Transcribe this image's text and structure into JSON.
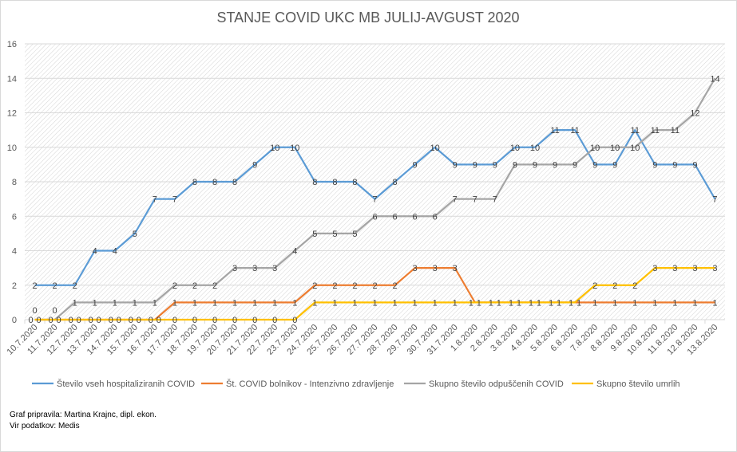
{
  "chart_data": {
    "type": "line",
    "title": "STANJE COVID UKC MB JULIJ-AVGUST 2020",
    "xlabel": "",
    "ylabel": "",
    "ylim": [
      0,
      16
    ],
    "yticks": [
      "0",
      "2",
      "4",
      "6",
      "8",
      "10",
      "12",
      "14",
      "16"
    ],
    "grid": true,
    "legend_position": "bottom",
    "categories": [
      "10.7.2020",
      "11.7.2020",
      "12.7.2020",
      "13.7.2020",
      "14.7.2020",
      "15.7.2020",
      "16.7.2020",
      "17.7.2020",
      "18.7.2020",
      "19.7.2020",
      "20.7.2020",
      "21.7.2020",
      "22.7.2020",
      "23.7.2020",
      "24.7.2020",
      "25.7.2020",
      "26.7.2020",
      "27.7.2020",
      "28.7.2020",
      "29.7.2020",
      "30.7.2020",
      "31.7.2020",
      "1.8.2020",
      "2.8.2020",
      "3.8.2020",
      "4.8.2020",
      "5.8.2020",
      "6.8.2020",
      "7.8.2020",
      "8.8.2020",
      "9.8.2020",
      "10.8.2020",
      "11.8.2020",
      "12.8.2020",
      "13.8.2020"
    ],
    "series": [
      {
        "name": "Število vseh hospitaliziranih COVID",
        "color": "#5b9bd5",
        "values": [
          2,
          2,
          2,
          4,
          4,
          5,
          7,
          7,
          8,
          8,
          8,
          9,
          10,
          10,
          8,
          8,
          8,
          7,
          8,
          9,
          10,
          9,
          9,
          9,
          10,
          10,
          11,
          11,
          9,
          9,
          11,
          9,
          9,
          9,
          7
        ]
      },
      {
        "name": "Št. COVID bolnikov - Intenzivno zdravljenje",
        "color": "#ed7d31",
        "values": [
          0,
          0,
          0,
          0,
          0,
          0,
          0,
          1,
          1,
          1,
          1,
          1,
          1,
          1,
          2,
          2,
          2,
          2,
          2,
          3,
          3,
          3,
          1,
          1,
          1,
          1,
          1,
          1,
          1,
          1,
          1,
          1,
          1,
          1,
          1
        ]
      },
      {
        "name": "Skupno število odpuščenih COVID",
        "color": "#a5a5a5",
        "values": [
          0,
          0,
          1,
          1,
          1,
          1,
          1,
          2,
          2,
          2,
          3,
          3,
          3,
          4,
          5,
          5,
          5,
          6,
          6,
          6,
          6,
          7,
          7,
          7,
          9,
          9,
          9,
          9,
          10,
          10,
          10,
          11,
          11,
          12,
          14
        ]
      },
      {
        "name": "Skupno število umrlih",
        "color": "#ffc000",
        "values": [
          0,
          0,
          0,
          0,
          0,
          0,
          0,
          0,
          0,
          0,
          0,
          0,
          0,
          0,
          1,
          1,
          1,
          1,
          1,
          1,
          1,
          1,
          1,
          1,
          1,
          1,
          1,
          1,
          2,
          2,
          2,
          3,
          3,
          3,
          3
        ]
      }
    ]
  },
  "footer": {
    "prepared_by": "Graf pripravila: Martina Krajnc, dipl. ekon.",
    "source": "Vir podatkov: Medis"
  }
}
